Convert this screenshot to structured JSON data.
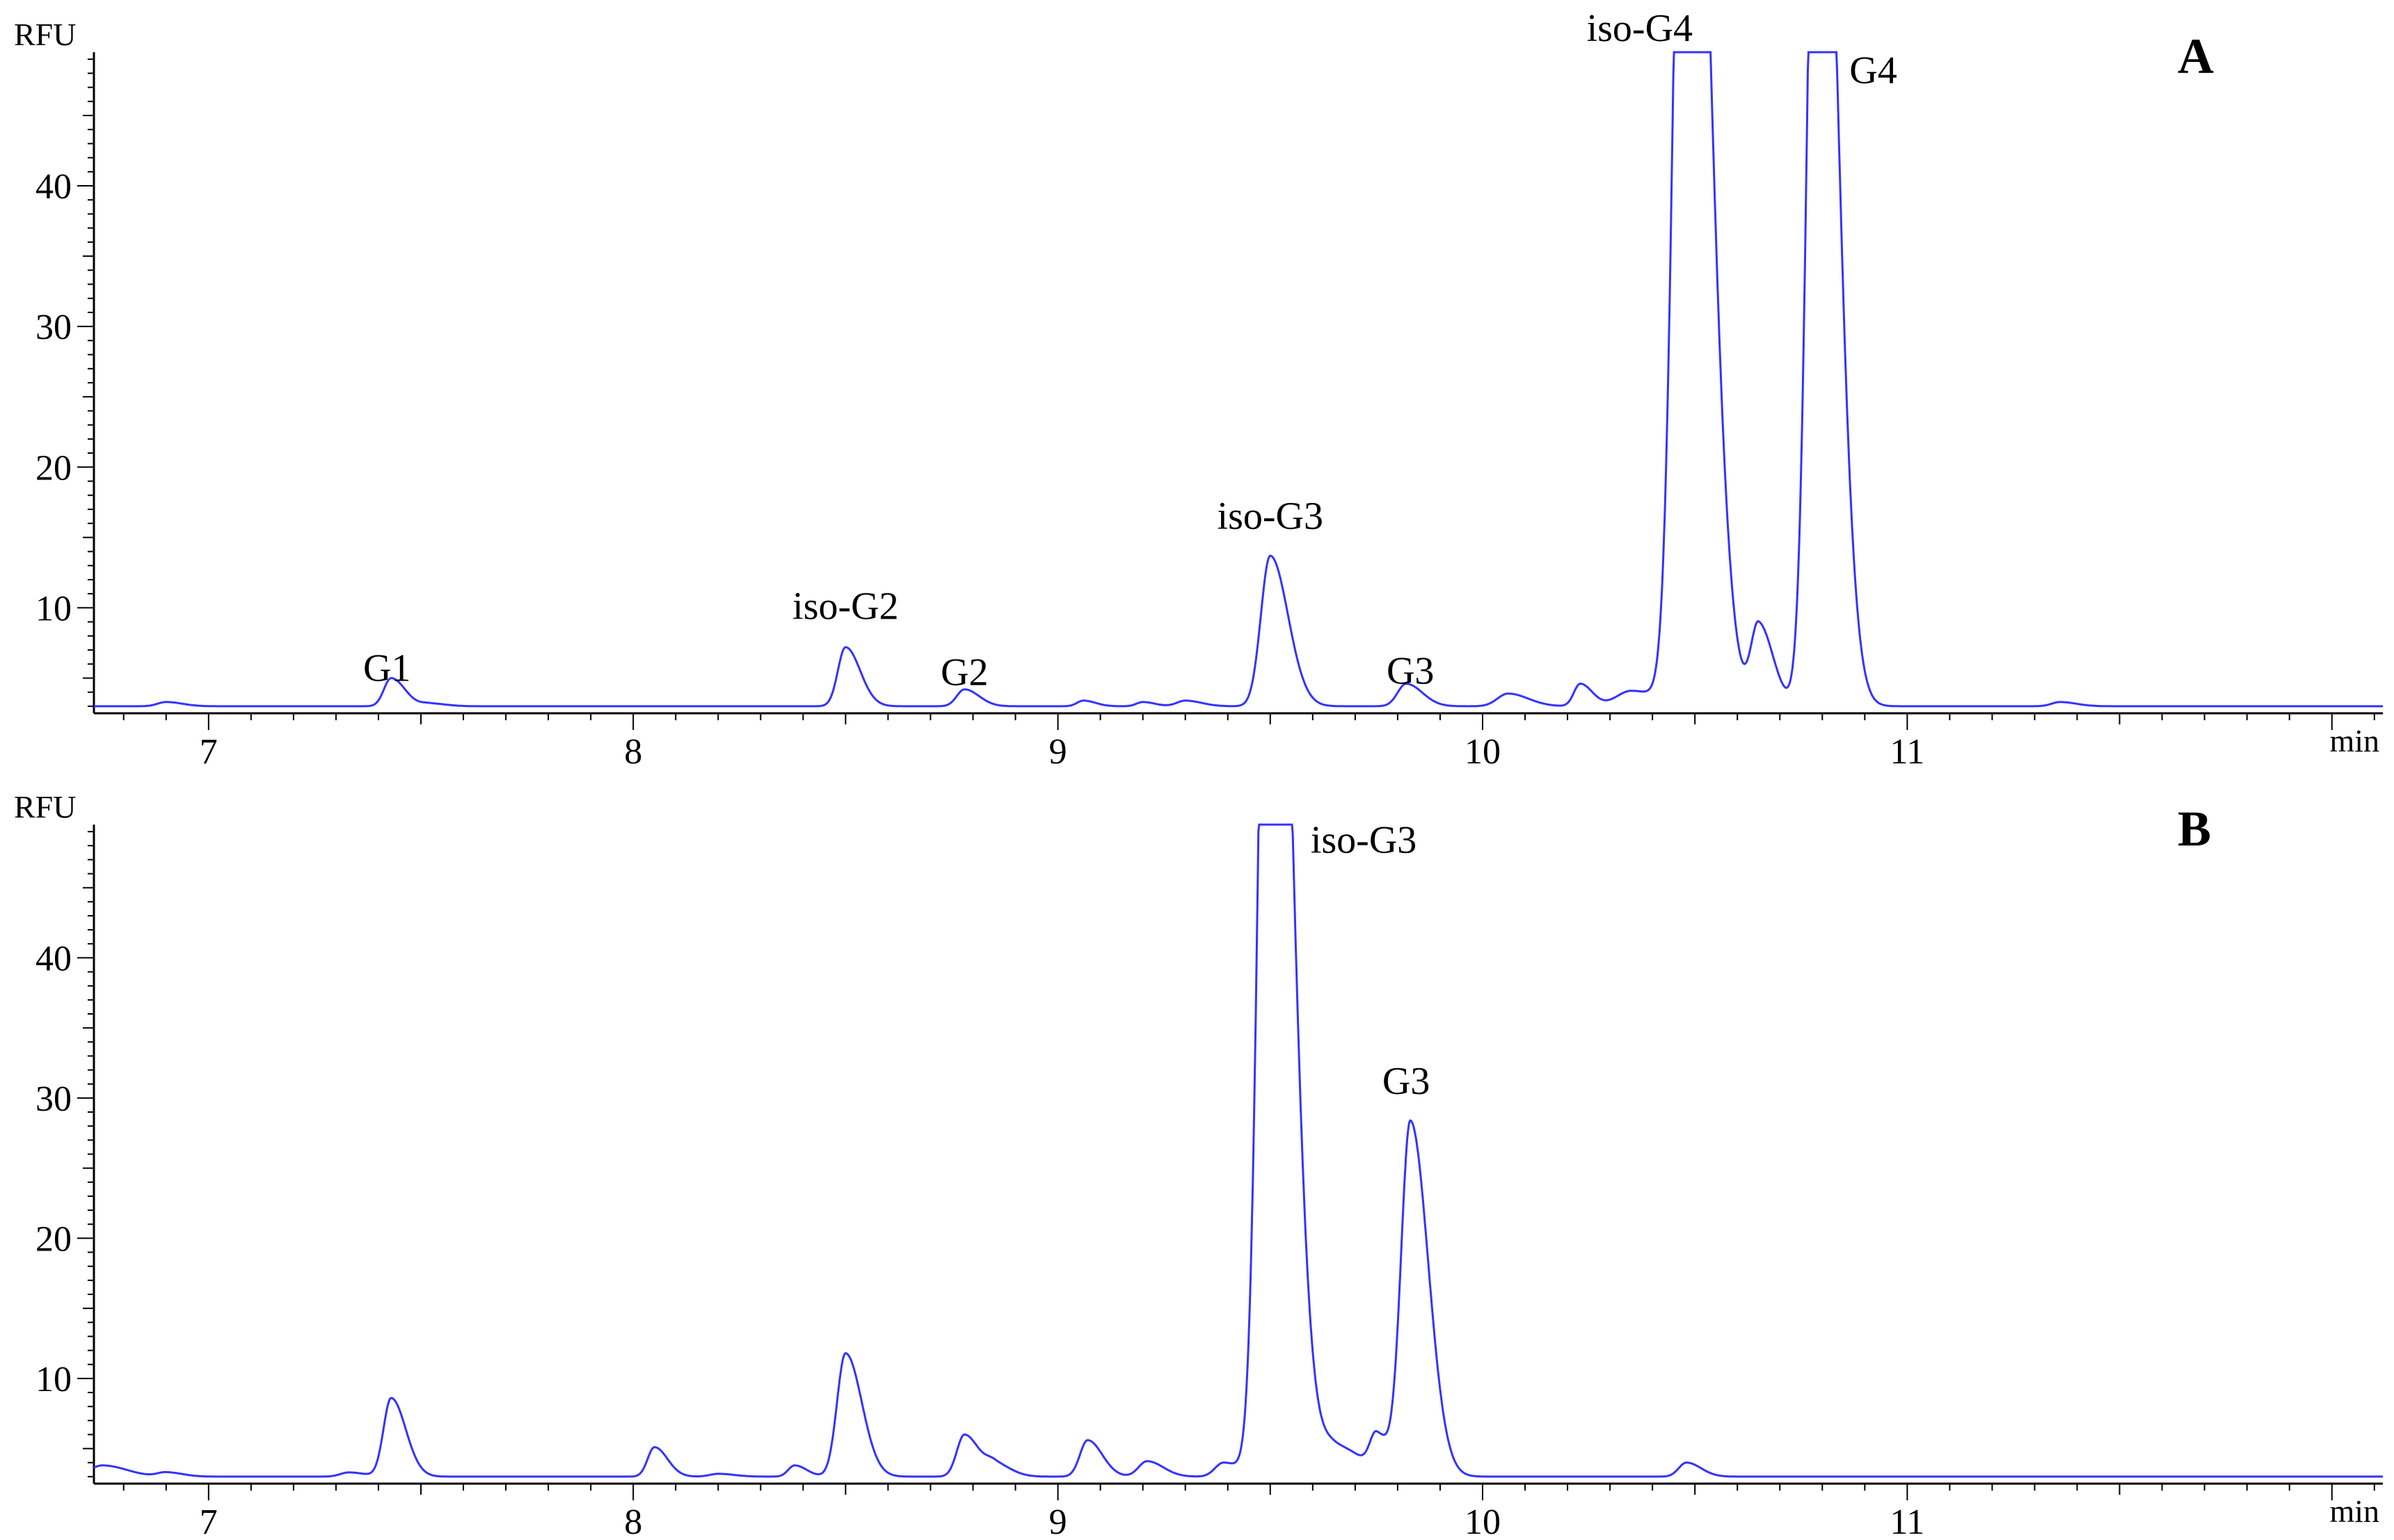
{
  "chart_data": [
    {
      "type": "line",
      "panel_label": "A",
      "ylabel": "RFU",
      "xlabel": "min",
      "xlim": [
        6.73,
        12.12
      ],
      "ylim": [
        2.5,
        49.5
      ],
      "xticks": [
        7,
        8,
        9,
        10,
        11
      ],
      "yticks": [
        10,
        20,
        30,
        40
      ],
      "grid": false,
      "line_color": "#3333ff",
      "baseline": 3.0,
      "saturation": 49.5,
      "series": [
        {
          "peaks": [
            {
              "x": 6.9,
              "y": 0.3,
              "w": 0.02
            },
            {
              "x": 7.43,
              "y": 2.0,
              "w": 0.017
            },
            {
              "x": 7.52,
              "y": 0.2,
              "w": 0.02
            },
            {
              "x": 8.5,
              "y": 4.2,
              "w": 0.018
            },
            {
              "x": 8.78,
              "y": 1.2,
              "w": 0.018
            },
            {
              "x": 9.06,
              "y": 0.4,
              "w": 0.015
            },
            {
              "x": 9.2,
              "y": 0.3,
              "w": 0.015
            },
            {
              "x": 9.3,
              "y": 0.4,
              "w": 0.02
            },
            {
              "x": 9.5,
              "y": 10.7,
              "w": 0.022
            },
            {
              "x": 9.82,
              "y": 1.6,
              "w": 0.02
            },
            {
              "x": 10.06,
              "y": 0.9,
              "w": 0.025
            },
            {
              "x": 10.23,
              "y": 1.6,
              "w": 0.015
            },
            {
              "x": 10.35,
              "y": 1.1,
              "w": 0.035
            },
            {
              "x": 10.48,
              "y": 90,
              "w": 0.026
            },
            {
              "x": 10.65,
              "y": 5.8,
              "w": 0.018
            },
            {
              "x": 10.76,
              "y": 1.5,
              "w": 0.02
            },
            {
              "x": 10.79,
              "y": 80,
              "w": 0.022
            },
            {
              "x": 11.36,
              "y": 0.3,
              "w": 0.02
            }
          ]
        }
      ],
      "annotations": [
        {
          "text": "G1",
          "x": 7.42,
          "y": 4.8
        },
        {
          "text": "iso-G2",
          "x": 8.5,
          "y": 9.2
        },
        {
          "text": "G2",
          "x": 8.78,
          "y": 4.5
        },
        {
          "text": "iso-G3",
          "x": 9.5,
          "y": 15.6
        },
        {
          "text": "G3",
          "x": 9.83,
          "y": 4.6
        },
        {
          "text": "iso-G4",
          "x": 10.37,
          "y": 50.3
        },
        {
          "text": "G4",
          "x": 10.92,
          "y": 47.3
        }
      ]
    },
    {
      "type": "line",
      "panel_label": "B",
      "ylabel": "RFU",
      "xlabel": "min",
      "xlim": [
        6.73,
        12.12
      ],
      "ylim": [
        2.5,
        49.5
      ],
      "xticks": [
        7,
        8,
        9,
        10,
        11
      ],
      "yticks": [
        10,
        20,
        30,
        40
      ],
      "grid": false,
      "line_color": "#3333ff",
      "baseline": 3.0,
      "saturation": 49.5,
      "series": [
        {
          "peaks": [
            {
              "x": 6.75,
              "y": 0.8,
              "w": 0.03
            },
            {
              "x": 6.9,
              "y": 0.3,
              "w": 0.02
            },
            {
              "x": 7.33,
              "y": 0.3,
              "w": 0.02
            },
            {
              "x": 7.43,
              "y": 5.6,
              "w": 0.018
            },
            {
              "x": 8.05,
              "y": 2.1,
              "w": 0.016
            },
            {
              "x": 8.2,
              "y": 0.2,
              "w": 0.02
            },
            {
              "x": 8.38,
              "y": 0.8,
              "w": 0.015
            },
            {
              "x": 8.5,
              "y": 8.8,
              "w": 0.02
            },
            {
              "x": 8.78,
              "y": 3.0,
              "w": 0.018
            },
            {
              "x": 8.85,
              "y": 0.9,
              "w": 0.02
            },
            {
              "x": 9.07,
              "y": 2.6,
              "w": 0.018
            },
            {
              "x": 9.21,
              "y": 1.1,
              "w": 0.02
            },
            {
              "x": 9.39,
              "y": 1.0,
              "w": 0.02
            },
            {
              "x": 9.5,
              "y": 90,
              "w": 0.024
            },
            {
              "x": 9.65,
              "y": 2.2,
              "w": 0.035
            },
            {
              "x": 9.75,
              "y": 2.5,
              "w": 0.015
            },
            {
              "x": 9.83,
              "y": 25.3,
              "w": 0.022
            },
            {
              "x": 10.48,
              "y": 1.0,
              "w": 0.018
            }
          ]
        }
      ],
      "annotations": [
        {
          "text": "iso-G3",
          "x": 9.72,
          "y": 47.5
        },
        {
          "text": "G3",
          "x": 9.82,
          "y": 30.3
        }
      ]
    }
  ]
}
